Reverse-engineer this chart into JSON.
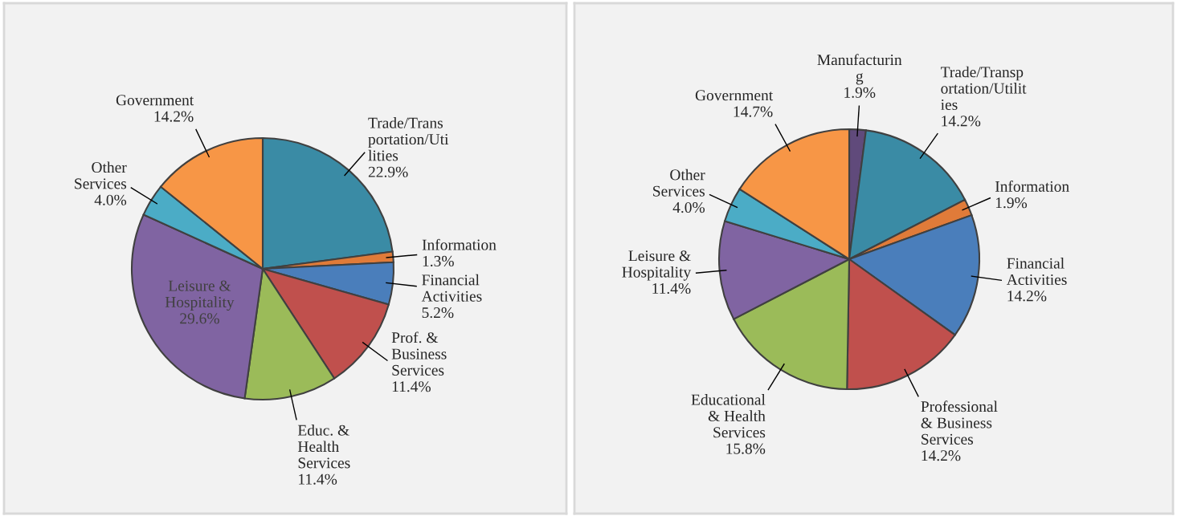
{
  "chart_data": [
    {
      "type": "pie",
      "categories": [
        "Trade/Trans\nportation/Uti\nlities",
        "Information",
        "Financial\nActivities",
        "Prof. &\nBusiness\nServices",
        "Educ. &\nHealth\nServices",
        "Leisure &\nHospitality",
        "Other\nServices",
        "Government"
      ],
      "values": [
        22.9,
        1.3,
        5.2,
        11.4,
        11.4,
        29.6,
        4.0,
        14.2
      ],
      "colors": [
        "#3a8ba5",
        "#e07b39",
        "#4a7ebb",
        "#c0504d",
        "#9bbb59",
        "#8064a2",
        "#4bacc6",
        "#f79646"
      ],
      "value_labels": [
        "22.9%",
        "1.3%",
        "5.2%",
        "11.4%",
        "11.4%",
        "29.6%",
        "4.0%",
        "14.2%"
      ]
    },
    {
      "type": "pie",
      "categories": [
        "Manufacturin\ng",
        "Trade/Transp\nortation/Utilit\nies",
        "Information",
        "Financial\nActivities",
        "Professional\n& Business\nServices",
        "Educational\n& Health\nServices",
        "Leisure &\nHospitality",
        "Other\nServices",
        "Government"
      ],
      "values": [
        1.9,
        14.2,
        1.9,
        14.2,
        14.2,
        15.8,
        11.4,
        4.0,
        14.7
      ],
      "colors": [
        "#604a7b",
        "#3a8ba5",
        "#e07b39",
        "#4a7ebb",
        "#c0504d",
        "#9bbb59",
        "#8064a2",
        "#4bacc6",
        "#f79646"
      ],
      "value_labels": [
        "1.9%",
        "14.2%",
        "1.9%",
        "14.2%",
        "14.2%",
        "15.8%",
        "11.4%",
        "4.0%",
        "14.7%"
      ]
    }
  ]
}
